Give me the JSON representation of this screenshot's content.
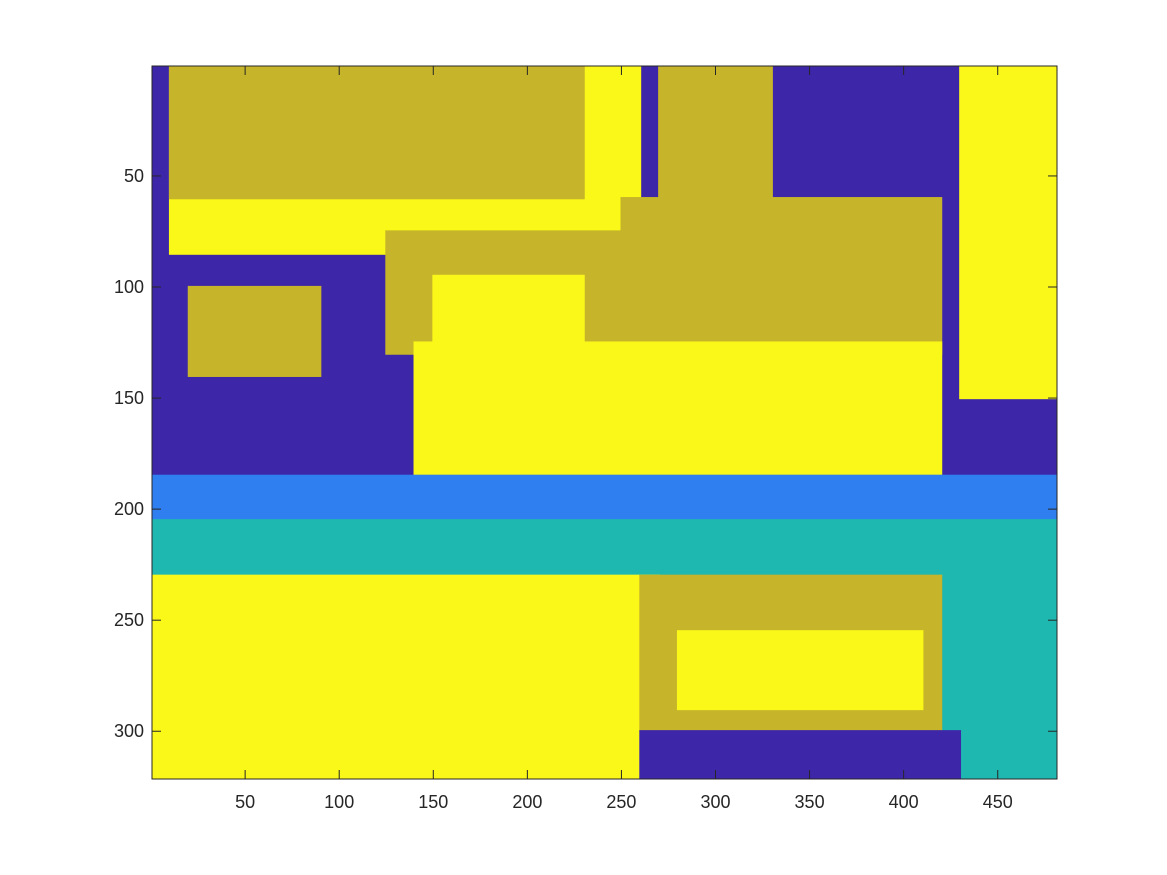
{
  "chart_data": {
    "type": "heatmap",
    "title": "",
    "xlabel": "",
    "ylabel": "",
    "xlim": [
      0.5,
      481.5
    ],
    "ylim": [
      0.5,
      321.5
    ],
    "y_reversed": true,
    "xticks": [
      50,
      100,
      150,
      200,
      250,
      300,
      350,
      400,
      450
    ],
    "yticks": [
      50,
      100,
      150,
      200,
      250,
      300
    ],
    "colormap": [
      "#3e26a8",
      "#2f7ff0",
      "#1fb8b0",
      "#c6b42a",
      "#f9f818"
    ],
    "grid": false,
    "legend": "none",
    "description_regions": [
      {
        "x": [
          1,
          481
        ],
        "y": [
          1,
          321
        ],
        "class": 0
      },
      {
        "x": [
          10,
          260
        ],
        "y": [
          1,
          85
        ],
        "class": 4
      },
      {
        "x": [
          10,
          230
        ],
        "y": [
          1,
          60
        ],
        "class": 3
      },
      {
        "x": [
          430,
          481
        ],
        "y": [
          1,
          150
        ],
        "class": 4
      },
      {
        "x": [
          270,
          330
        ],
        "y": [
          1,
          60
        ],
        "class": 3
      },
      {
        "x": [
          250,
          420
        ],
        "y": [
          60,
          130
        ],
        "class": 3
      },
      {
        "x": [
          125,
          250
        ],
        "y": [
          75,
          130
        ],
        "class": 3
      },
      {
        "x": [
          150,
          230
        ],
        "y": [
          95,
          125
        ],
        "class": 4
      },
      {
        "x": [
          140,
          420
        ],
        "y": [
          125,
          185
        ],
        "class": 4
      },
      {
        "x": [
          20,
          90
        ],
        "y": [
          100,
          140
        ],
        "class": 3
      },
      {
        "x": [
          1,
          481
        ],
        "y": [
          185,
          230
        ],
        "class": 1
      },
      {
        "x": [
          1,
          481
        ],
        "y": [
          205,
          321
        ],
        "class": 2
      },
      {
        "x": [
          1,
          270
        ],
        "y": [
          230,
          321
        ],
        "class": 4
      },
      {
        "x": [
          260,
          420
        ],
        "y": [
          230,
          300
        ],
        "class": 3
      },
      {
        "x": [
          280,
          410
        ],
        "y": [
          255,
          290
        ],
        "class": 4
      },
      {
        "x": [
          260,
          430
        ],
        "y": [
          300,
          321
        ],
        "class": 0
      }
    ]
  }
}
